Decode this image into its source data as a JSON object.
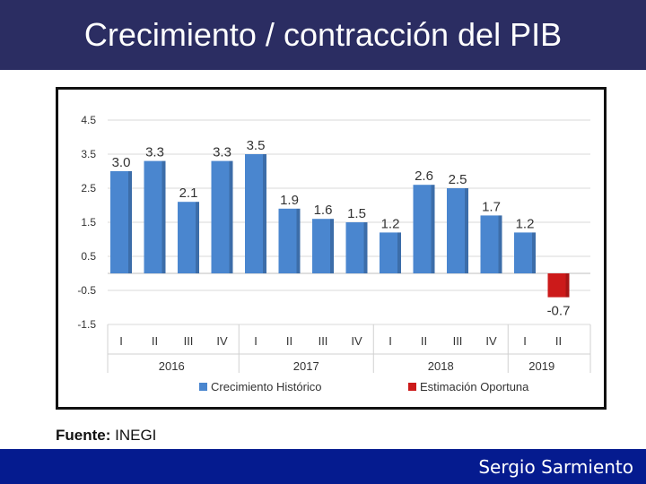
{
  "header": {
    "title": "Crecimiento / contracción del PIB"
  },
  "footer": {
    "author": "Sergio Sarmiento"
  },
  "source": {
    "label": "Fuente:",
    "value": "INEGI"
  },
  "colors": {
    "header_bg": "#2b2d62",
    "footer_bg": "#051b8f",
    "historic": "#4a86cf",
    "estimate": "#cc1a1a"
  },
  "chart_data": {
    "type": "bar",
    "title": "",
    "ylim": [
      -1.5,
      4.5
    ],
    "yticks": [
      4.5,
      3.5,
      2.5,
      1.5,
      0.5,
      -0.5,
      -1.5
    ],
    "ytick_labels": [
      "4.5",
      "3.5",
      "2.5",
      "1.5",
      "0.5",
      "-0.5",
      "-1.5"
    ],
    "categories": [
      "I",
      "II",
      "III",
      "IV",
      "I",
      "II",
      "III",
      "IV",
      "I",
      "II",
      "III",
      "IV",
      "I",
      "II"
    ],
    "years": [
      {
        "label": "2016",
        "count": 4
      },
      {
        "label": "2017",
        "count": 4
      },
      {
        "label": "2018",
        "count": 4
      },
      {
        "label": "2019",
        "count": 2
      }
    ],
    "values": [
      3.0,
      3.3,
      2.1,
      3.3,
      3.5,
      1.9,
      1.6,
      1.5,
      1.2,
      2.6,
      2.5,
      1.7,
      1.2,
      -0.7
    ],
    "value_labels": [
      "3.0",
      "3.3",
      "2.1",
      "3.3",
      "3.5",
      "1.9",
      "1.6",
      "1.5",
      "1.2",
      "2.6",
      "2.5",
      "1.7",
      "1.2",
      "-0.7"
    ],
    "series_index": [
      0,
      0,
      0,
      0,
      0,
      0,
      0,
      0,
      0,
      0,
      0,
      0,
      0,
      1
    ],
    "legend": [
      {
        "name": "Crecimiento  Histórico",
        "color": "#4a86cf"
      },
      {
        "name": "Estimación Oportuna",
        "color": "#cc1a1a"
      }
    ]
  }
}
